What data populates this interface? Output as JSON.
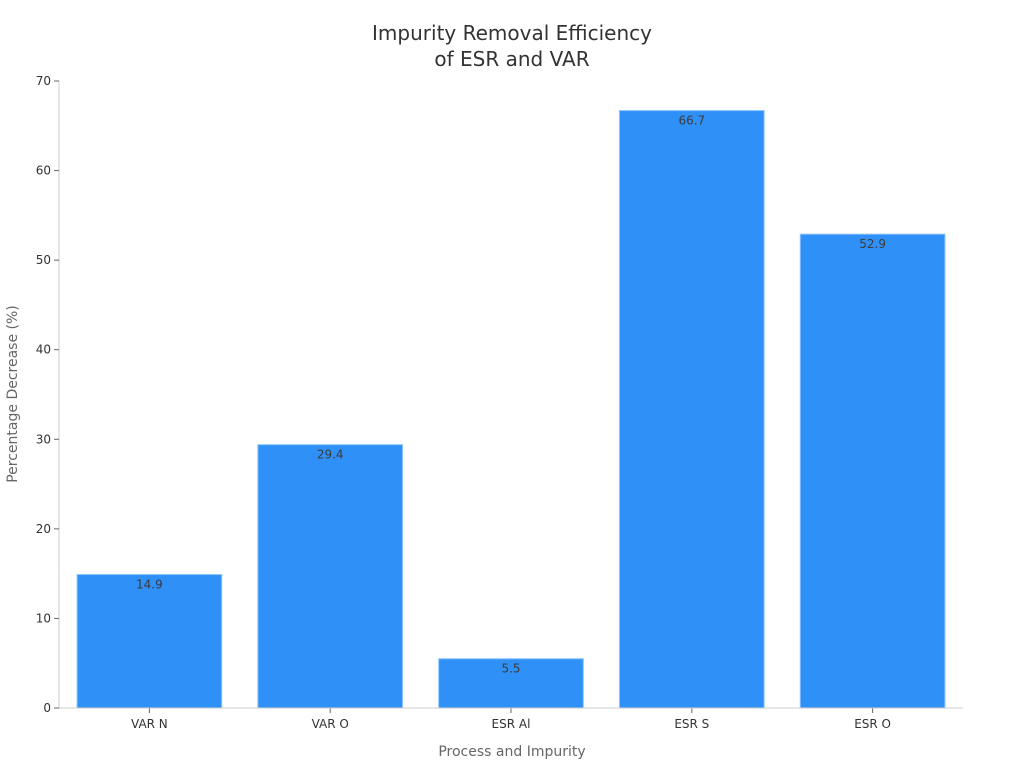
{
  "chart_data": {
    "type": "bar",
    "title": "Impurity Removal Efficiency of ESR and VAR",
    "title_lines": [
      "Impurity Removal Efficiency",
      "of ESR and VAR"
    ],
    "xlabel": "Process and Impurity",
    "ylabel": "Percentage Decrease (%)",
    "categories": [
      "VAR N",
      "VAR O",
      "ESR Al",
      "ESR S",
      "ESR O"
    ],
    "values": [
      14.9,
      29.4,
      5.5,
      66.7,
      52.9
    ],
    "data_labels": [
      "14.9",
      "29.4",
      "5.5",
      "66.7",
      "52.9"
    ],
    "ylim": [
      0,
      70
    ],
    "yticks": [
      0,
      10,
      20,
      30,
      40,
      50,
      60,
      70
    ],
    "grid": false,
    "legend": null,
    "colors": {
      "bar": "#2f91f7",
      "bar_border": "#8cc3fb",
      "axis": "#cccccc",
      "text": "#333333"
    }
  }
}
